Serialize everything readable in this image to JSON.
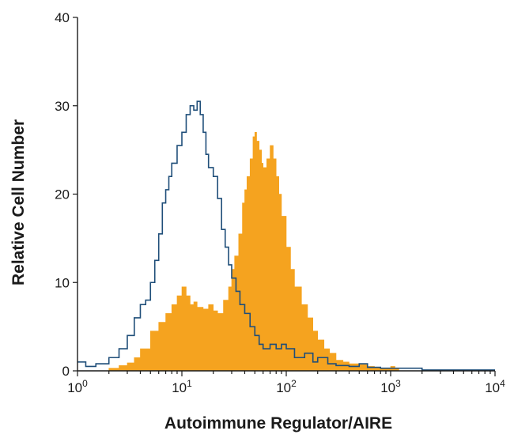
{
  "chart_data": {
    "type": "area",
    "title": "",
    "xlabel": "Autoimmune Regulator/AIRE",
    "ylabel": "Relative Cell Number",
    "x_scale": "log",
    "xlim": [
      1,
      10000
    ],
    "ylim": [
      0,
      40
    ],
    "x_ticks": [
      {
        "value": 1,
        "base": "10",
        "exp": "0"
      },
      {
        "value": 10,
        "base": "10",
        "exp": "1"
      },
      {
        "value": 100,
        "base": "10",
        "exp": "2"
      },
      {
        "value": 1000,
        "base": "10",
        "exp": "3"
      },
      {
        "value": 10000,
        "base": "10",
        "exp": "4"
      }
    ],
    "y_ticks": [
      {
        "value": 0,
        "label": "0"
      },
      {
        "value": 10,
        "label": "10"
      },
      {
        "value": 20,
        "label": "20"
      },
      {
        "value": 30,
        "label": "30"
      },
      {
        "value": 40,
        "label": "40"
      }
    ],
    "grid": false,
    "legend": "none",
    "series": [
      {
        "style": "filled",
        "color": "#f5a31f",
        "points": [
          [
            1.0,
            0
          ],
          [
            1.5,
            0
          ],
          [
            2.0,
            0.3
          ],
          [
            2.5,
            0.6
          ],
          [
            3.0,
            0.9
          ],
          [
            3.5,
            1.5
          ],
          [
            4.0,
            2.5
          ],
          [
            5.0,
            4.5
          ],
          [
            6.0,
            5.5
          ],
          [
            7.0,
            6.5
          ],
          [
            8.0,
            7.5
          ],
          [
            9.0,
            8.5
          ],
          [
            10.0,
            9.5
          ],
          [
            11.0,
            8.5
          ],
          [
            12.0,
            7.5
          ],
          [
            13.0,
            7.8
          ],
          [
            14.0,
            7.2
          ],
          [
            16.0,
            7.0
          ],
          [
            18.0,
            7.5
          ],
          [
            20.0,
            6.8
          ],
          [
            22.0,
            6.5
          ],
          [
            25.0,
            8.0
          ],
          [
            28.0,
            9.5
          ],
          [
            30.0,
            11.5
          ],
          [
            32.0,
            13.0
          ],
          [
            35.0,
            15.5
          ],
          [
            38.0,
            19.0
          ],
          [
            40.0,
            20.5
          ],
          [
            42.0,
            22.0
          ],
          [
            45.0,
            24.0
          ],
          [
            48.0,
            26.5
          ],
          [
            50.0,
            27.0
          ],
          [
            52.0,
            26.0
          ],
          [
            55.0,
            25.0
          ],
          [
            58.0,
            23.5
          ],
          [
            60.0,
            23.0
          ],
          [
            65.0,
            24.0
          ],
          [
            70.0,
            25.5
          ],
          [
            75.0,
            24.0
          ],
          [
            80.0,
            22.0
          ],
          [
            85.0,
            20.0
          ],
          [
            90.0,
            17.5
          ],
          [
            100.0,
            14.0
          ],
          [
            110.0,
            11.5
          ],
          [
            120.0,
            9.5
          ],
          [
            140.0,
            7.5
          ],
          [
            160.0,
            6.0
          ],
          [
            180.0,
            4.5
          ],
          [
            200.0,
            3.5
          ],
          [
            230.0,
            2.5
          ],
          [
            260.0,
            2.0
          ],
          [
            300.0,
            1.2
          ],
          [
            350.0,
            1.0
          ],
          [
            400.0,
            0.8
          ],
          [
            500.0,
            0.7
          ],
          [
            600.0,
            0.5
          ],
          [
            700.0,
            0.4
          ],
          [
            800.0,
            0.3
          ],
          [
            900.0,
            0.2
          ],
          [
            1000.0,
            0.5
          ],
          [
            1100.0,
            0.3
          ],
          [
            1200.0,
            0
          ]
        ]
      },
      {
        "style": "outline",
        "color": "#1f4e79",
        "points": [
          [
            1.0,
            1.0
          ],
          [
            1.2,
            0.5
          ],
          [
            1.5,
            0.8
          ],
          [
            2.0,
            1.5
          ],
          [
            2.5,
            2.5
          ],
          [
            3.0,
            4.0
          ],
          [
            3.5,
            6.0
          ],
          [
            4.0,
            7.5
          ],
          [
            4.5,
            8.0
          ],
          [
            5.0,
            10.0
          ],
          [
            5.5,
            12.5
          ],
          [
            6.0,
            15.5
          ],
          [
            6.5,
            19.0
          ],
          [
            7.0,
            20.5
          ],
          [
            7.5,
            22.0
          ],
          [
            8.0,
            23.5
          ],
          [
            9.0,
            25.5
          ],
          [
            10.0,
            27.0
          ],
          [
            11.0,
            29.0
          ],
          [
            12.0,
            30.0
          ],
          [
            13.0,
            29.5
          ],
          [
            14.0,
            30.5
          ],
          [
            15.0,
            29.0
          ],
          [
            16.0,
            27.0
          ],
          [
            17.0,
            24.5
          ],
          [
            18.0,
            23.0
          ],
          [
            20.0,
            22.0
          ],
          [
            22.0,
            19.5
          ],
          [
            24.0,
            16.0
          ],
          [
            26.0,
            14.0
          ],
          [
            28.0,
            12.0
          ],
          [
            30.0,
            10.5
          ],
          [
            33.0,
            9.0
          ],
          [
            36.0,
            7.5
          ],
          [
            40.0,
            6.5
          ],
          [
            45.0,
            5.0
          ],
          [
            50.0,
            4.0
          ],
          [
            55.0,
            3.0
          ],
          [
            60.0,
            2.5
          ],
          [
            70.0,
            3.0
          ],
          [
            80.0,
            2.5
          ],
          [
            90.0,
            3.0
          ],
          [
            100.0,
            2.5
          ],
          [
            120.0,
            1.5
          ],
          [
            150.0,
            2.0
          ],
          [
            180.0,
            1.0
          ],
          [
            200.0,
            1.5
          ],
          [
            250.0,
            0.8
          ],
          [
            300.0,
            0.6
          ],
          [
            400.0,
            0.5
          ],
          [
            500.0,
            0.8
          ],
          [
            600.0,
            0.4
          ],
          [
            800.0,
            0.3
          ],
          [
            1000.0,
            0.3
          ],
          [
            2000.0,
            0.1
          ],
          [
            5000.0,
            0.1
          ],
          [
            10000.0,
            0.1
          ]
        ]
      }
    ]
  }
}
